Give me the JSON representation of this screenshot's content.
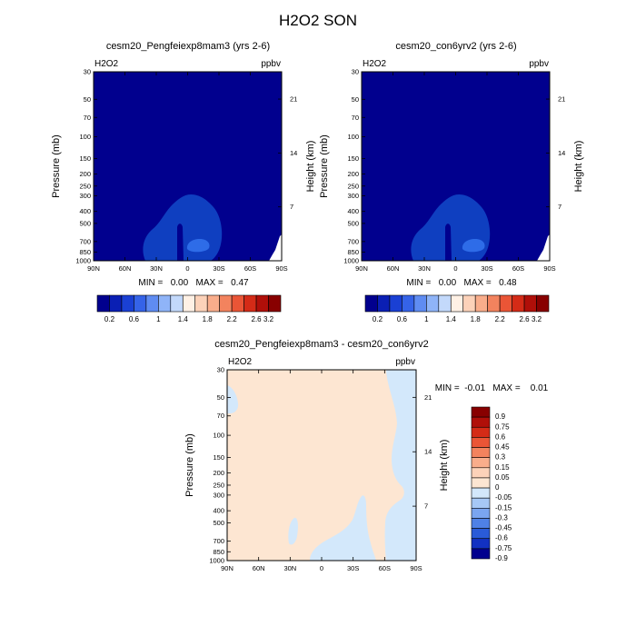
{
  "title": "H2O2 SON",
  "colors": {
    "frame": "#000000",
    "background_field": "#01008e",
    "plume_field": "#0f3fc0",
    "plume_core": "#2e6ce8",
    "diff_base": "#fde6d2",
    "diff_negative": "#d3e8fb"
  },
  "panels": [
    {
      "title": "cesm20_Pengfeiexp8mam3 (yrs 2-6)",
      "variable": "H2O2",
      "units": "ppbv",
      "yaxis_label": "Pressure (mb)",
      "right_label": "Height (km)",
      "stats": "MIN =   0.00   MAX =   0.47"
    },
    {
      "title": "cesm20_con6yrv2 (yrs 2-6)",
      "variable": "H2O2",
      "units": "ppbv",
      "yaxis_label": "Pressure (mb)",
      "right_label": "Height (km)",
      "stats": "MIN =   0.00   MAX =   0.48"
    },
    {
      "title": "cesm20_Pengfeiexp8mam3 - cesm20_con6yrv2",
      "variable": "H2O2",
      "units": "ppbv",
      "yaxis_label": "Pressure (mb)",
      "right_label": "Height (km)",
      "stats": "MIN =  -0.01   MAX =    0.01"
    }
  ],
  "chart_data": [
    {
      "type": "heatmap",
      "title": "cesm20_Pengfeiexp8mam3 (yrs 2-6)",
      "ylabel": "Pressure (mb)",
      "y2label": "Height (km)",
      "x_ticks": [
        "90N",
        "60N",
        "30N",
        "0",
        "30S",
        "60S",
        "90S"
      ],
      "y_ticks": [
        "30",
        "50",
        "70",
        "100",
        "150",
        "200",
        "250",
        "300",
        "400",
        "500",
        "700",
        "850",
        "1000"
      ],
      "y_tick_values": [
        30,
        50,
        70,
        100,
        150,
        200,
        250,
        300,
        400,
        500,
        700,
        850,
        1000
      ],
      "y2_ticks": [
        "21",
        "14",
        "7"
      ],
      "y2_tick_values": [
        21,
        14,
        7
      ],
      "ylim": [
        1000,
        30
      ],
      "min": 0.0,
      "max": 0.47,
      "colorbar_labels": [
        "0.2",
        "0.6",
        "1",
        "1.4",
        "1.8",
        "2.2",
        "2.6",
        "3.2"
      ],
      "colorbar_colors": [
        "#01008e",
        "#0a1fb4",
        "#1a40d4",
        "#3563e8",
        "#5f8cf2",
        "#8fb4f8",
        "#c3d9fb",
        "#fff1e5",
        "#fcd2b9",
        "#f9ad8b",
        "#f3835e",
        "#ea5536",
        "#d42b17",
        "#b00f09",
        "#880000"
      ]
    },
    {
      "type": "heatmap",
      "title": "cesm20_con6yrv2 (yrs 2-6)",
      "ylabel": "Pressure (mb)",
      "y2label": "Height (km)",
      "x_ticks": [
        "90N",
        "60N",
        "30N",
        "0",
        "30S",
        "60S",
        "90S"
      ],
      "y_ticks": [
        "30",
        "50",
        "70",
        "100",
        "150",
        "200",
        "250",
        "300",
        "400",
        "500",
        "700",
        "850",
        "1000"
      ],
      "y_tick_values": [
        30,
        50,
        70,
        100,
        150,
        200,
        250,
        300,
        400,
        500,
        700,
        850,
        1000
      ],
      "y2_ticks": [
        "21",
        "14",
        "7"
      ],
      "y2_tick_values": [
        21,
        14,
        7
      ],
      "ylim": [
        1000,
        30
      ],
      "min": 0.0,
      "max": 0.48,
      "colorbar_labels": [
        "0.2",
        "0.6",
        "1",
        "1.4",
        "1.8",
        "2.2",
        "2.6",
        "3.2"
      ],
      "colorbar_colors": [
        "#01008e",
        "#0a1fb4",
        "#1a40d4",
        "#3563e8",
        "#5f8cf2",
        "#8fb4f8",
        "#c3d9fb",
        "#fff1e5",
        "#fcd2b9",
        "#f9ad8b",
        "#f3835e",
        "#ea5536",
        "#d42b17",
        "#b00f09",
        "#880000"
      ]
    },
    {
      "type": "heatmap",
      "title": "cesm20_Pengfeiexp8mam3 - cesm20_con6yrv2",
      "ylabel": "Pressure (mb)",
      "y2label": "Height (km)",
      "x_ticks": [
        "90N",
        "60N",
        "30N",
        "0",
        "30S",
        "60S",
        "90S"
      ],
      "y_ticks": [
        "30",
        "50",
        "70",
        "100",
        "150",
        "200",
        "250",
        "300",
        "400",
        "500",
        "700",
        "850",
        "1000"
      ],
      "y_tick_values": [
        30,
        50,
        70,
        100,
        150,
        200,
        250,
        300,
        400,
        500,
        700,
        850,
        1000
      ],
      "y2_ticks": [
        "21",
        "14",
        "7"
      ],
      "y2_tick_values": [
        21,
        14,
        7
      ],
      "ylim": [
        1000,
        30
      ],
      "min": -0.01,
      "max": 0.01,
      "colorbar_labels": [
        "0.9",
        "0.75",
        "0.6",
        "0.45",
        "0.3",
        "0.15",
        "0.05",
        "0",
        "-0.05",
        "-0.15",
        "-0.3",
        "-0.45",
        "-0.6",
        "-0.75",
        "-0.9"
      ],
      "colorbar_colors": [
        "#880000",
        "#b00f09",
        "#d42b17",
        "#ea5536",
        "#f3835e",
        "#f9ad8b",
        "#fcd2b9",
        "#fde6d2",
        "#d3e8fb",
        "#a6c8f6",
        "#7aa5f0",
        "#4f81e6",
        "#2a5bd8",
        "#1231c2",
        "#01008e"
      ]
    }
  ]
}
